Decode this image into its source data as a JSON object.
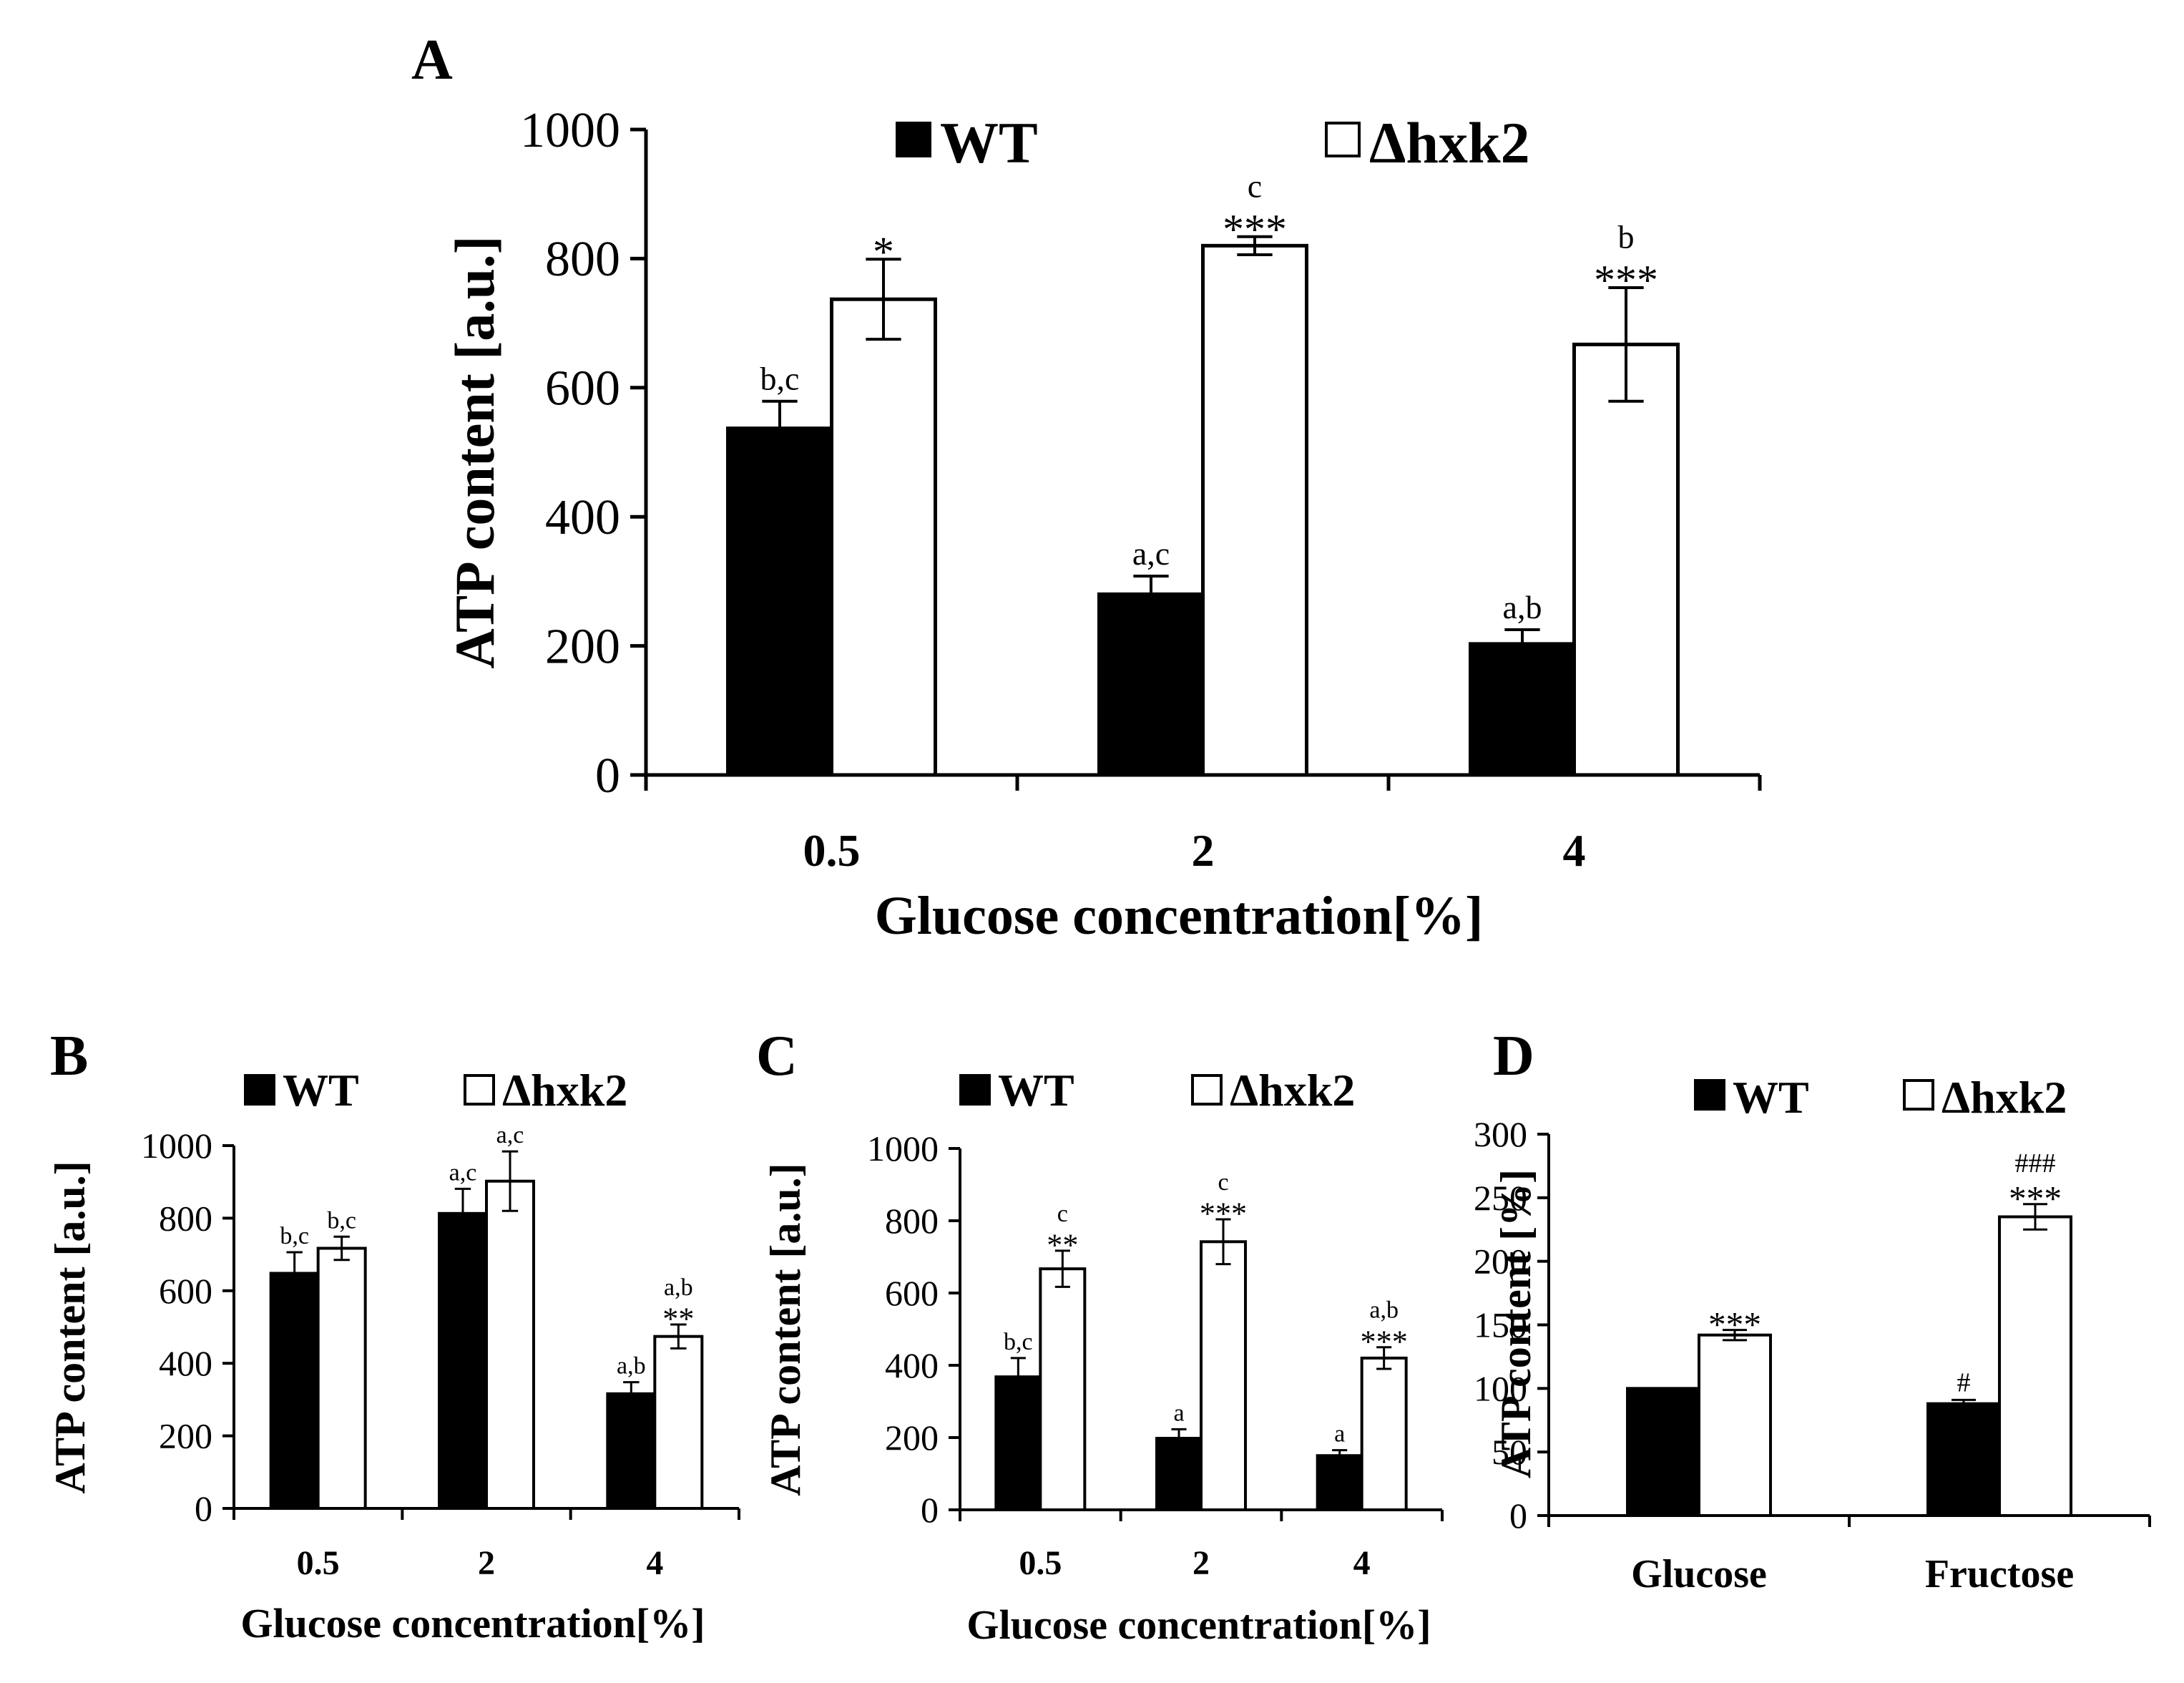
{
  "chart_data": [
    {
      "panel": "A",
      "type": "bar",
      "categories": [
        "0.5",
        "2",
        "4"
      ],
      "series": [
        {
          "name": "WT",
          "color": "#000000",
          "values": [
            537,
            280,
            203
          ],
          "errors": [
            42,
            28,
            22
          ],
          "annotations": [
            "b,c",
            "a,c",
            "a,b"
          ]
        },
        {
          "name": "Δhxk2",
          "color": "#ffffff",
          "values": [
            737,
            820,
            667
          ],
          "errors": [
            62,
            14,
            88
          ],
          "annotations": [
            "*",
            "c\n***",
            "b\n***"
          ]
        }
      ],
      "xlabel": "Glucose concentration[%]",
      "ylabel": "ATP content [a.u.]",
      "ylim": [
        0,
        1000
      ],
      "yticks": [
        0,
        200,
        400,
        600,
        800,
        1000
      ]
    },
    {
      "panel": "B",
      "type": "bar",
      "categories": [
        "0.5",
        "2",
        "4"
      ],
      "series": [
        {
          "name": "WT",
          "color": "#000000",
          "values": [
            648,
            813,
            316
          ],
          "errors": [
            58,
            68,
            32
          ],
          "annotations": [
            "b,c",
            "a,c",
            "a,b"
          ]
        },
        {
          "name": "Δhxk2",
          "color": "#ffffff",
          "values": [
            717,
            902,
            474
          ],
          "errors": [
            32,
            82,
            33
          ],
          "annotations": [
            "b,c",
            "a,c",
            "a,b\n**"
          ]
        }
      ],
      "xlabel": "Glucose concentration[%]",
      "ylabel": "ATP content [a.u.]",
      "ylim": [
        0,
        1000
      ],
      "yticks": [
        0,
        200,
        400,
        600,
        800,
        1000
      ]
    },
    {
      "panel": "C",
      "type": "bar",
      "categories": [
        "0.5",
        "2",
        "4"
      ],
      "series": [
        {
          "name": "WT",
          "color": "#000000",
          "values": [
            368,
            198,
            150
          ],
          "errors": [
            52,
            25,
            15
          ],
          "annotations": [
            "b,c",
            "a",
            "a"
          ]
        },
        {
          "name": "Δhxk2",
          "color": "#ffffff",
          "values": [
            667,
            742,
            420
          ],
          "errors": [
            50,
            62,
            30
          ],
          "annotations": [
            "c\n**",
            "c\n***",
            "a,b\n***"
          ]
        }
      ],
      "xlabel": "Glucose concentration[%]",
      "ylabel": "ATP content [a.u.]",
      "ylim": [
        0,
        1000
      ],
      "yticks": [
        0,
        200,
        400,
        600,
        800,
        1000
      ]
    },
    {
      "panel": "D",
      "type": "bar",
      "categories": [
        "Glucose",
        "Fructose"
      ],
      "series": [
        {
          "name": "WT",
          "color": "#000000",
          "values": [
            100,
            88
          ],
          "errors": [
            0,
            3
          ],
          "annotations": [
            "",
            "#"
          ]
        },
        {
          "name": "Δhxk2",
          "color": "#ffffff",
          "values": [
            142,
            235
          ],
          "errors": [
            4,
            10
          ],
          "annotations": [
            "***",
            "###\n***"
          ]
        }
      ],
      "xlabel": "",
      "ylabel": "ATP content [%]",
      "ylim": [
        0,
        300
      ],
      "yticks": [
        0,
        50,
        100,
        150,
        200,
        250,
        300
      ]
    }
  ]
}
